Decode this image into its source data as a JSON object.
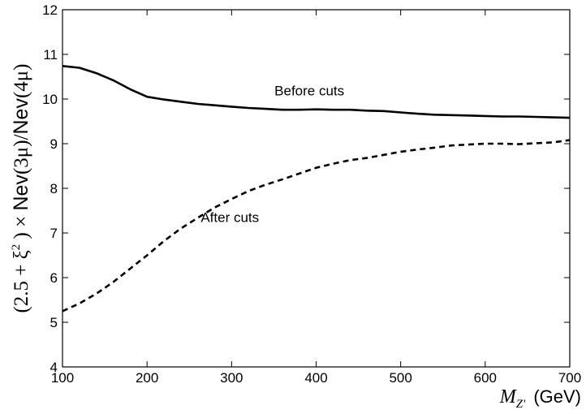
{
  "chart_data": {
    "type": "line",
    "title": "",
    "xlabel": {
      "symbol": "M",
      "subscript": "Z′",
      "unit": "(GeV)"
    },
    "ylabel": {
      "prefix": "(2.5 + ξ",
      "exponent": "2",
      "middle": ") × ",
      "nev1": "Nev",
      "arg1": "(3μ)",
      "slash": "/",
      "nev2": "Nev",
      "arg2": "(4μ)"
    },
    "xlim": [
      100,
      700
    ],
    "ylim": [
      4,
      12
    ],
    "xticks": [
      "100",
      "200",
      "300",
      "400",
      "500",
      "600",
      "700"
    ],
    "yticks": [
      "4",
      "5",
      "6",
      "7",
      "8",
      "9",
      "10",
      "11",
      "12"
    ],
    "grid": false,
    "legend": "none",
    "series": [
      {
        "style": "solid",
        "x": [
          100,
          120,
          140,
          160,
          180,
          200,
          220,
          240,
          260,
          280,
          300,
          320,
          340,
          360,
          380,
          400,
          420,
          440,
          460,
          480,
          500,
          520,
          540,
          560,
          580,
          600,
          620,
          640,
          660,
          680,
          700
        ],
        "y": [
          10.74,
          10.7,
          10.58,
          10.42,
          10.22,
          10.05,
          9.99,
          9.94,
          9.89,
          9.86,
          9.83,
          9.8,
          9.78,
          9.76,
          9.76,
          9.77,
          9.76,
          9.76,
          9.74,
          9.73,
          9.7,
          9.67,
          9.65,
          9.64,
          9.63,
          9.62,
          9.61,
          9.61,
          9.6,
          9.59,
          9.58
        ]
      },
      {
        "style": "dashed",
        "x": [
          100,
          120,
          140,
          160,
          180,
          200,
          220,
          240,
          260,
          280,
          300,
          320,
          340,
          360,
          380,
          400,
          420,
          440,
          460,
          480,
          500,
          520,
          540,
          560,
          580,
          600,
          620,
          640,
          660,
          680,
          700
        ],
        "y": [
          5.25,
          5.42,
          5.64,
          5.9,
          6.2,
          6.5,
          6.82,
          7.1,
          7.34,
          7.57,
          7.76,
          7.94,
          8.08,
          8.2,
          8.33,
          8.46,
          8.55,
          8.63,
          8.68,
          8.75,
          8.82,
          8.87,
          8.91,
          8.96,
          8.98,
          9.0,
          9.0,
          8.99,
          9.01,
          9.03,
          9.08
        ]
      }
    ],
    "annotations": [
      {
        "text": "Before cuts",
        "x": 392,
        "y": 10.08
      },
      {
        "text": "After cuts",
        "x": 298,
        "y": 7.25
      }
    ]
  }
}
